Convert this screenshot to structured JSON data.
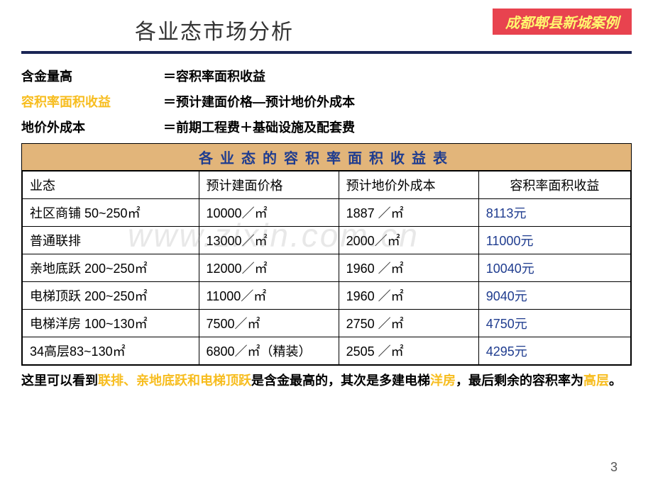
{
  "title": "各业态市场分析",
  "badge": "成都郫县新城案例",
  "definitions": [
    {
      "label": "含金量高",
      "label_color": "#000",
      "value": "＝容积率面积收益"
    },
    {
      "label": "容积率面积收益",
      "label_color": "#f7bd1f",
      "value": "＝预计建面价格—预计地价外成本"
    },
    {
      "label": "地价外成本",
      "label_color": "#000",
      "value": "＝前期工程费＋基础设施及配套费"
    }
  ],
  "table": {
    "title": "各业态的容积率面积收益表",
    "title_bg": "#e2b57a",
    "title_color": "#1f3c8f",
    "columns": [
      "业态",
      "预计建面价格",
      "预计地价外成本",
      "容积率面积收益"
    ],
    "rows": [
      [
        "社区商铺 50~250㎡",
        "10000／㎡",
        "1887 ／㎡",
        "8113元"
      ],
      [
        "普通联排",
        "13000／㎡",
        "2000／㎡",
        "11000元"
      ],
      [
        "亲地底跃 200~250㎡",
        "12000／㎡",
        "1960 ／㎡",
        "10040元"
      ],
      [
        "电梯顶跃 200~250㎡",
        "11000／㎡",
        "1960 ／㎡",
        "9040元"
      ],
      [
        "电梯洋房 100~130㎡",
        "7500／㎡",
        "2750 ／㎡",
        "4750元"
      ],
      [
        "34高层83~130㎡",
        "6800／㎡（精装）",
        "2505 ／㎡",
        "4295元"
      ]
    ],
    "value_color": "#1f3c8f"
  },
  "summary": {
    "parts": [
      {
        "t": "这里可以看到",
        "c": "#000"
      },
      {
        "t": "联排、亲地底跃和电梯顶跃",
        "c": "#f7bd1f"
      },
      {
        "t": "是含金最高的，其次是多建电梯",
        "c": "#000"
      },
      {
        "t": "洋房",
        "c": "#f7bd1f"
      },
      {
        "t": "，最后剩余的容积率为",
        "c": "#000"
      },
      {
        "t": "高层",
        "c": "#f7bd1f"
      },
      {
        "t": "。",
        "c": "#000"
      }
    ]
  },
  "watermark": "www.zixin.com.cn",
  "page_number": "3"
}
